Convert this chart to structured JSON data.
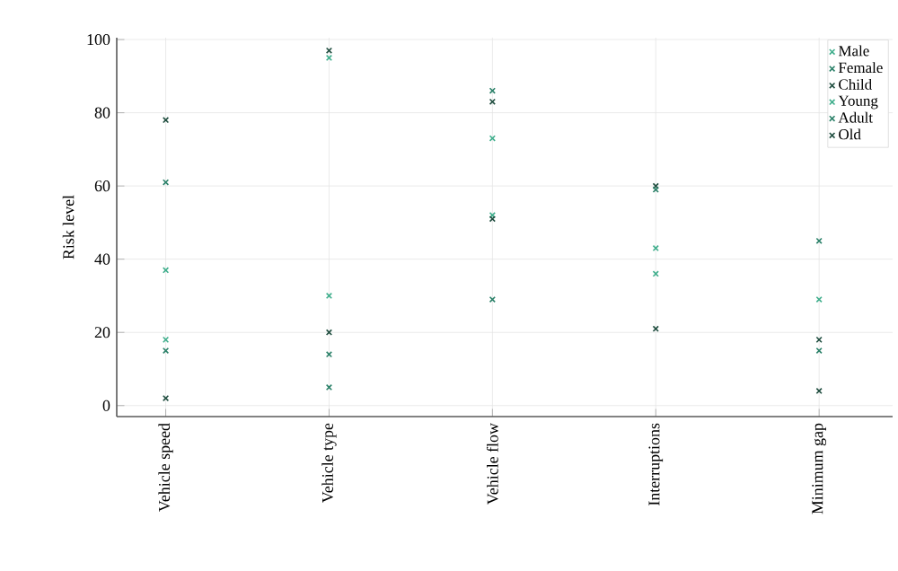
{
  "chart_data": {
    "type": "scatter",
    "ylabel": "Risk level",
    "categories": [
      "Vehicle speed",
      "Vehicle type",
      "Vehicle flow",
      "Interruptions",
      "Minimum gap"
    ],
    "series": [
      {
        "name": "Male",
        "color": "#3fae8c",
        "values": [
          37,
          95,
          73,
          43,
          29
        ]
      },
      {
        "name": "Female",
        "color": "#2a8068",
        "values": [
          61,
          14,
          86,
          null,
          45
        ]
      },
      {
        "name": "Child",
        "color": "#1f4d3f",
        "values": [
          78,
          97,
          83,
          60,
          18
        ]
      },
      {
        "name": "Young",
        "color": "#3fae8c",
        "values": [
          18,
          30,
          52,
          36,
          null
        ]
      },
      {
        "name": "Adult",
        "color": "#2a8068",
        "values": [
          15,
          5,
          29,
          59,
          15
        ]
      },
      {
        "name": "Old",
        "color": "#1f4d3f",
        "values": [
          2,
          20,
          51,
          21,
          4
        ]
      }
    ],
    "ylim": [
      -3,
      100.5
    ],
    "yticks": [
      0,
      20,
      40,
      60,
      80,
      100
    ],
    "grid": true,
    "legend": "top right",
    "marker": "cross"
  }
}
